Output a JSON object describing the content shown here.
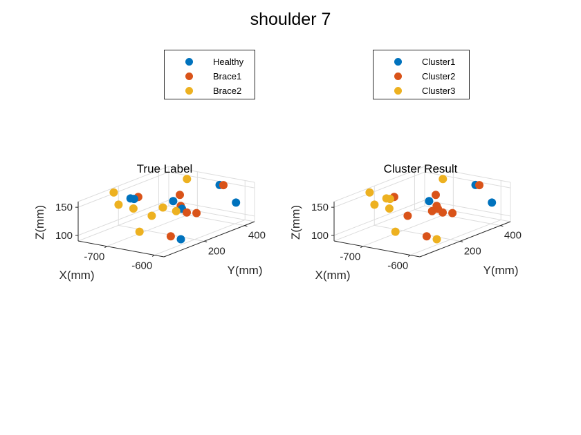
{
  "figure": {
    "title": "shoulder 7"
  },
  "colors": {
    "blue": "#0072BD",
    "orange": "#D95319",
    "yellow": "#EDB120",
    "axis": "#262626",
    "grid": "#dcdcdc"
  },
  "chart_data": [
    {
      "type": "scatter3d",
      "title": "True Label",
      "xlabel": "X(mm)",
      "ylabel": "Y(mm)",
      "zlabel": "Z(mm)",
      "xlim": [
        -760,
        -580
      ],
      "ylim": [
        0,
        450
      ],
      "zlim": [
        90,
        160
      ],
      "xticks": [
        -700,
        -600
      ],
      "yticks": [
        200,
        400
      ],
      "zticks": [
        100,
        150
      ],
      "legend_position": "above",
      "series": [
        {
          "name": "Healthy",
          "color": "#0072BD",
          "points": [
            [
              -722,
              170,
              148
            ],
            [
              -717,
              176,
              147
            ],
            [
              -662,
              240,
              143
            ],
            [
              -652,
              260,
              128
            ],
            [
              -602,
              410,
              126
            ],
            [
              -628,
              390,
              156
            ],
            [
              -612,
              160,
              94
            ]
          ]
        },
        {
          "name": "Brace1",
          "color": "#D95319",
          "points": [
            [
              -712,
              185,
              150
            ],
            [
              -665,
              280,
              148
            ],
            [
              -658,
              268,
              131
            ],
            [
              -642,
              260,
              123
            ],
            [
              -630,
              280,
              121
            ],
            [
              -620,
              390,
              157
            ],
            [
              -629,
              150,
              98
            ]
          ]
        },
        {
          "name": "Brace2",
          "color": "#EDB120",
          "points": [
            [
              -753,
              160,
              155
            ],
            [
              -745,
              165,
              134
            ],
            [
              -718,
              175,
              130
            ],
            [
              -692,
              260,
              124
            ],
            [
              -688,
              370,
              160
            ],
            [
              -690,
              200,
              118
            ],
            [
              -682,
              120,
              102
            ],
            [
              -660,
              250,
              124
            ]
          ]
        }
      ]
    },
    {
      "type": "scatter3d",
      "title": "Cluster Result",
      "xlabel": "X(mm)",
      "ylabel": "Y(mm)",
      "zlabel": "Z(mm)",
      "xlim": [
        -760,
        -580
      ],
      "ylim": [
        0,
        450
      ],
      "zlim": [
        90,
        160
      ],
      "xticks": [
        -700,
        -600
      ],
      "yticks": [
        200,
        400
      ],
      "zticks": [
        100,
        150
      ],
      "legend_position": "above",
      "series": [
        {
          "name": "Cluster1",
          "color": "#0072BD",
          "points": [
            [
              -662,
              240,
              143
            ],
            [
              -602,
              410,
              126
            ],
            [
              -628,
              390,
              156
            ]
          ]
        },
        {
          "name": "Cluster2",
          "color": "#D95319",
          "points": [
            [
              -712,
              185,
              150
            ],
            [
              -665,
              280,
              148
            ],
            [
              -658,
              268,
              131
            ],
            [
              -642,
              260,
              123
            ],
            [
              -630,
              280,
              121
            ],
            [
              -620,
              390,
              157
            ],
            [
              -629,
              150,
              98
            ],
            [
              -652,
              260,
              128
            ],
            [
              -690,
              200,
              118
            ],
            [
              -660,
              250,
              124
            ]
          ]
        },
        {
          "name": "Cluster3",
          "color": "#EDB120",
          "points": [
            [
              -753,
              160,
              155
            ],
            [
              -745,
              165,
              134
            ],
            [
              -722,
              170,
              148
            ],
            [
              -717,
              176,
              147
            ],
            [
              -718,
              175,
              130
            ],
            [
              -688,
              370,
              160
            ],
            [
              -682,
              120,
              102
            ],
            [
              -612,
              160,
              94
            ]
          ]
        }
      ]
    }
  ]
}
